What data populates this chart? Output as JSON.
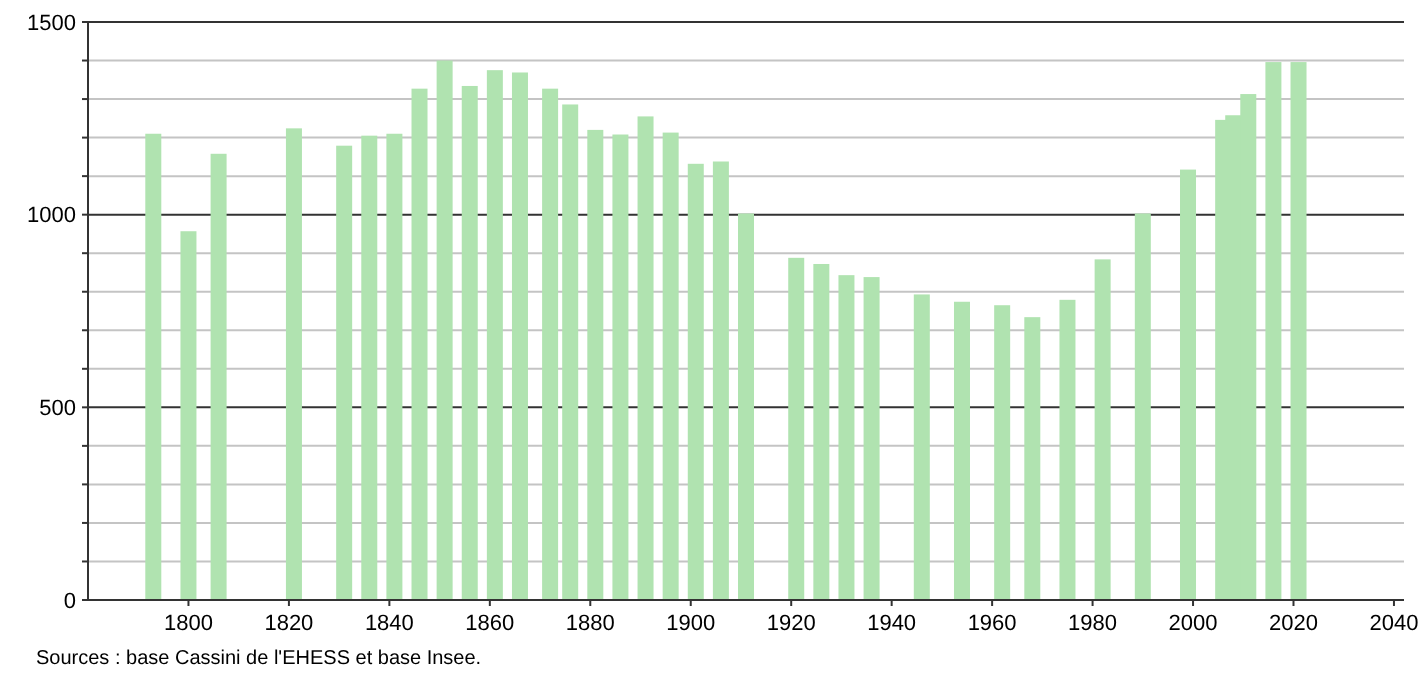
{
  "chart_data": {
    "type": "bar",
    "x": [
      1793,
      1800,
      1806,
      1821,
      1831,
      1836,
      1841,
      1846,
      1851,
      1856,
      1861,
      1866,
      1872,
      1876,
      1881,
      1886,
      1891,
      1896,
      1901,
      1906,
      1911,
      1921,
      1926,
      1931,
      1936,
      1946,
      1954,
      1962,
      1968,
      1975,
      1982,
      1990,
      1999,
      2006,
      2008,
      2011,
      2016,
      2021
    ],
    "values": [
      1210,
      957,
      1158,
      1224,
      1179,
      1205,
      1210,
      1327,
      1400,
      1334,
      1375,
      1369,
      1327,
      1286,
      1220,
      1208,
      1255,
      1213,
      1132,
      1138,
      1003,
      888,
      872,
      843,
      838,
      793,
      774,
      765,
      734,
      779,
      884,
      1003,
      1117,
      1246,
      1258,
      1313,
      1396,
      1396
    ],
    "color": "#b0e3b0",
    "xlim": [
      1780,
      2042
    ],
    "xticks": [
      1800,
      1820,
      1840,
      1860,
      1880,
      1900,
      1920,
      1940,
      1960,
      1980,
      2000,
      2020,
      2040
    ],
    "ylim": [
      0,
      1500
    ],
    "yticks": [
      0,
      {
        "value": 100,
        "label": null
      },
      {
        "value": 200,
        "label": null
      },
      {
        "value": 300,
        "label": null
      },
      {
        "value": 400,
        "label": null
      },
      500,
      {
        "value": 600,
        "label": null
      },
      {
        "value": 700,
        "label": null
      },
      {
        "value": 800,
        "label": null
      },
      {
        "value": 900,
        "label": null
      },
      1000,
      {
        "value": 1100,
        "label": null
      },
      {
        "value": 1200,
        "label": null
      },
      {
        "value": 1300,
        "label": null
      },
      {
        "value": 1400,
        "label": null
      },
      1500
    ],
    "grid": true,
    "annotations": [
      "Sources : base Cassini de l'EHESS et base Insee."
    ]
  }
}
